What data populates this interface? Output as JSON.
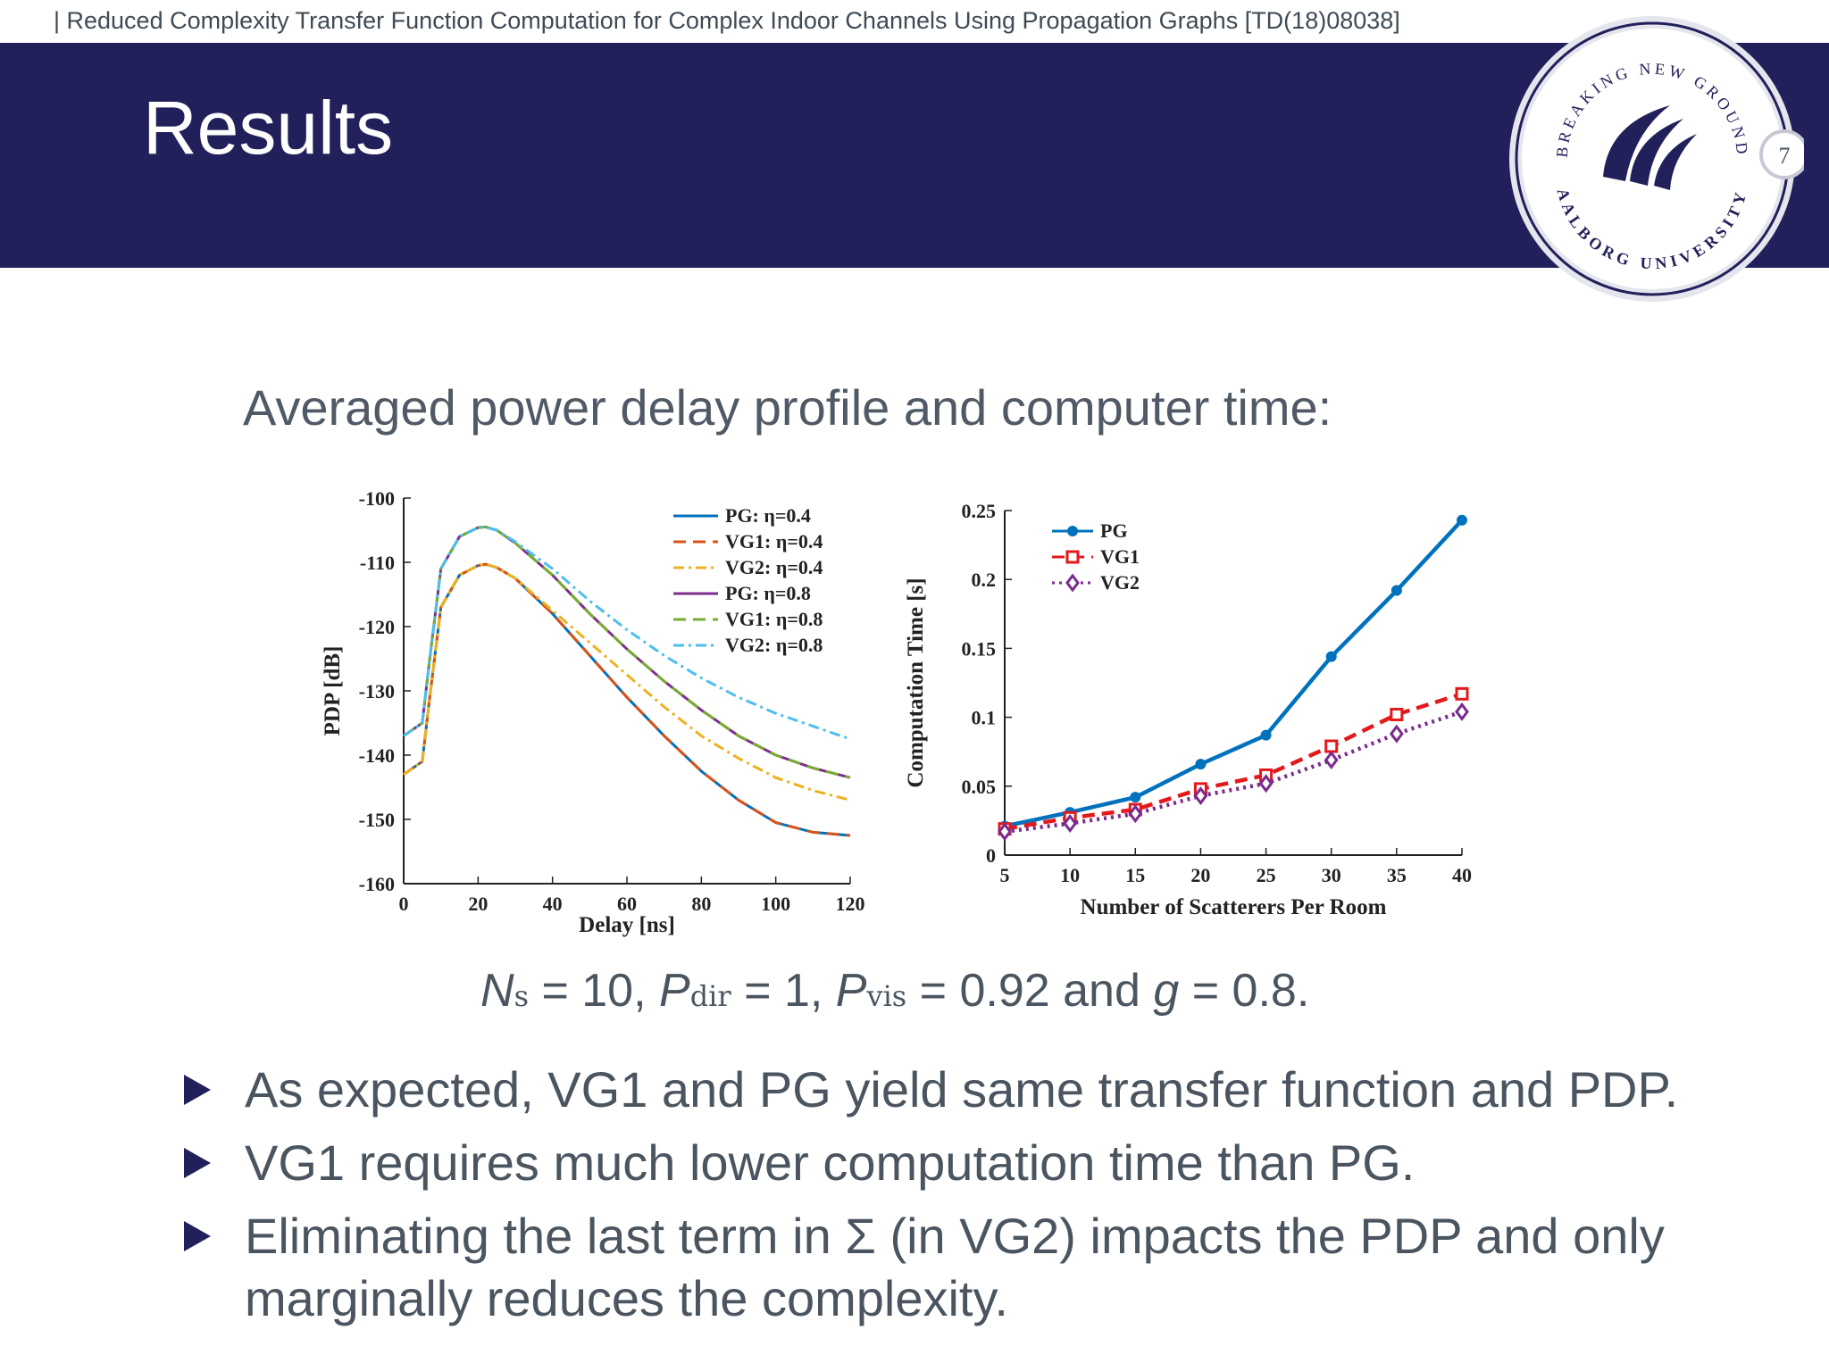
{
  "header": {
    "running_title": "| Reduced Complexity Transfer Function Computation for Complex Indoor Channels Using Propagation Graphs [TD(18)08038]",
    "title": "Results",
    "page_number": "7"
  },
  "logo": {
    "arc_top_text": "BREAKING NEW GROUND",
    "arc_bottom_text": "AALBORG UNIVERSITY"
  },
  "colors": {
    "band": "#22205a",
    "text": "#4a5560",
    "pg": "#0072BD",
    "vg1": "#D95319",
    "vg2": "#EDB120",
    "pg08": "#7E2F8E",
    "vg1_08": "#77AC30",
    "vg2_08": "#4DBEEE",
    "ct_vg1": "#e31a1c",
    "ct_vg2": "#7b2a8e"
  },
  "subtitle": "Averaged power delay profile and computer time:",
  "params": {
    "ns_sym": "N",
    "ns_sub": "s",
    "ns_val": "= 10,",
    "pdir_sym": "P",
    "pdir_sub": "dir",
    "pdir_val": "= 1,",
    "pvis_sym": "P",
    "pvis_sub": "vis",
    "pvis_val": "= 0.92 and",
    "g_sym": "g",
    "g_val": "= 0.8."
  },
  "bullets": [
    "As expected, VG1 and PG yield same transfer function and PDP.",
    "VG1 requires much lower computation time than PG.",
    "Eliminating the last term in Σ (in VG2) impacts the PDP and only marginally reduces the complexity."
  ],
  "chart_data": [
    {
      "type": "line",
      "title": "",
      "xlabel": "Delay [ns]",
      "ylabel": "PDP [dB]",
      "xlim": [
        0,
        120
      ],
      "ylim": [
        -160,
        -100
      ],
      "xticks": [
        "0",
        "20",
        "40",
        "60",
        "80",
        "100",
        "120"
      ],
      "yticks": [
        "-100",
        "-110",
        "-120",
        "-130",
        "-140",
        "-150",
        "-160"
      ],
      "legend_position": "top-right",
      "x": [
        0,
        5,
        7,
        10,
        15,
        20,
        22,
        25,
        30,
        40,
        50,
        60,
        70,
        80,
        90,
        100,
        110,
        120
      ],
      "series": [
        {
          "name": "PG: η=0.4",
          "style": "solid",
          "values": [
            -143,
            -141,
            -131,
            -117,
            -112,
            -110.5,
            -110.3,
            -110.8,
            -112.5,
            -118,
            -124.5,
            -131,
            -137,
            -142.5,
            -147,
            -150.5,
            -152,
            -152.5
          ]
        },
        {
          "name": "VG1: η=0.4",
          "style": "dashed",
          "values": [
            -143,
            -141,
            -131,
            -117,
            -112,
            -110.5,
            -110.3,
            -110.8,
            -112.5,
            -118,
            -124.5,
            -131,
            -137,
            -142.5,
            -147,
            -150.5,
            -152,
            -152.5
          ]
        },
        {
          "name": "VG2: η=0.4",
          "style": "dashdot",
          "values": [
            -143,
            -141,
            -131,
            -117,
            -112,
            -110.5,
            -110.3,
            -110.8,
            -112.5,
            -117.5,
            -122.5,
            -127.5,
            -132.5,
            -137,
            -140.5,
            -143.5,
            -145.5,
            -147
          ]
        },
        {
          "name": "PG: η=0.8",
          "style": "solid",
          "values": [
            -137,
            -135,
            -125,
            -111,
            -106,
            -104.6,
            -104.5,
            -105,
            -107,
            -112,
            -118,
            -123.5,
            -128.5,
            -133,
            -137,
            -140,
            -142,
            -143.5
          ]
        },
        {
          "name": "VG1: η=0.8",
          "style": "dashed",
          "values": [
            -137,
            -135,
            -125,
            -111,
            -106,
            -104.6,
            -104.5,
            -105,
            -107,
            -112,
            -118,
            -123.5,
            -128.5,
            -133,
            -137,
            -140,
            -142,
            -143.5
          ]
        },
        {
          "name": "VG2: η=0.8",
          "style": "dashdot",
          "values": [
            -137,
            -135,
            -125,
            -111,
            -106,
            -104.6,
            -104.5,
            -105,
            -106.8,
            -111,
            -116,
            -120.5,
            -124.5,
            -128,
            -131,
            -133.5,
            -135.5,
            -137.5
          ]
        }
      ]
    },
    {
      "type": "line",
      "title": "",
      "xlabel": "Number of Scatterers Per Room",
      "ylabel": "Computation Time [s]",
      "xlim": [
        5,
        40
      ],
      "ylim": [
        0,
        0.25
      ],
      "xticks": [
        "5",
        "10",
        "15",
        "20",
        "25",
        "30",
        "35",
        "40"
      ],
      "yticks": [
        "0",
        "0.05",
        "0.1",
        "0.15",
        "0.2",
        "0.25"
      ],
      "legend_position": "top-left",
      "x": [
        5,
        10,
        15,
        20,
        25,
        30,
        35,
        40
      ],
      "series": [
        {
          "name": "PG",
          "marker": "circle",
          "style": "solid",
          "values": [
            0.021,
            0.031,
            0.042,
            0.066,
            0.087,
            0.144,
            0.192,
            0.243
          ]
        },
        {
          "name": "VG1",
          "marker": "square",
          "style": "dashed",
          "values": [
            0.019,
            0.027,
            0.033,
            0.048,
            0.058,
            0.079,
            0.102,
            0.117
          ]
        },
        {
          "name": "VG2",
          "marker": "diamond",
          "style": "dotted",
          "values": [
            0.017,
            0.023,
            0.03,
            0.043,
            0.052,
            0.069,
            0.088,
            0.104
          ]
        }
      ]
    }
  ]
}
